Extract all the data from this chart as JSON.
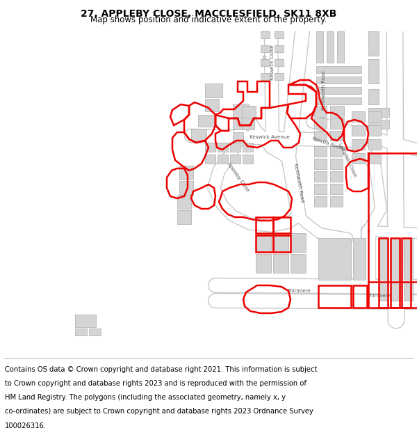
{
  "title": "27, APPLEBY CLOSE, MACCLESFIELD, SK11 8XB",
  "subtitle": "Map shows position and indicative extent of the property.",
  "footer_lines": [
    "Contains OS data © Crown copyright and database right 2021. This information is subject",
    "to Crown copyright and database rights 2023 and is reproduced with the permission of",
    "HM Land Registry. The polygons (including the associated geometry, namely x, y",
    "co-ordinates) are subject to Crown copyright and database rights 2023 Ordnance Survey",
    "100026316."
  ],
  "bg": "#ffffff",
  "map_bg": "#f7f7f7",
  "bld_fill": "#d4d4d4",
  "bld_edge": "#aaaaaa",
  "road_fill": "#ffffff",
  "road_edge": "#c8c8c8",
  "red": "#ee0000",
  "label_color": "#555555",
  "title_fs": 10,
  "subtitle_fs": 8.5,
  "footer_fs": 7.2,
  "label_fs": 5.0,
  "road_lw": 10,
  "red_lw": 1.8
}
